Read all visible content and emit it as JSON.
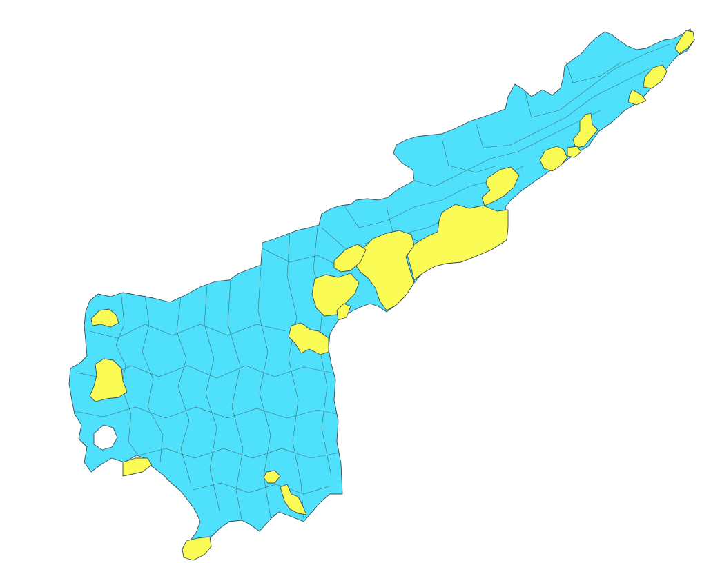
{
  "map": {
    "colors": {
      "background": "#ffffff",
      "base_region": "#4fe0fb",
      "highlight_region": "#fbfb56",
      "border": "#3a4a52"
    },
    "legend": null
  }
}
